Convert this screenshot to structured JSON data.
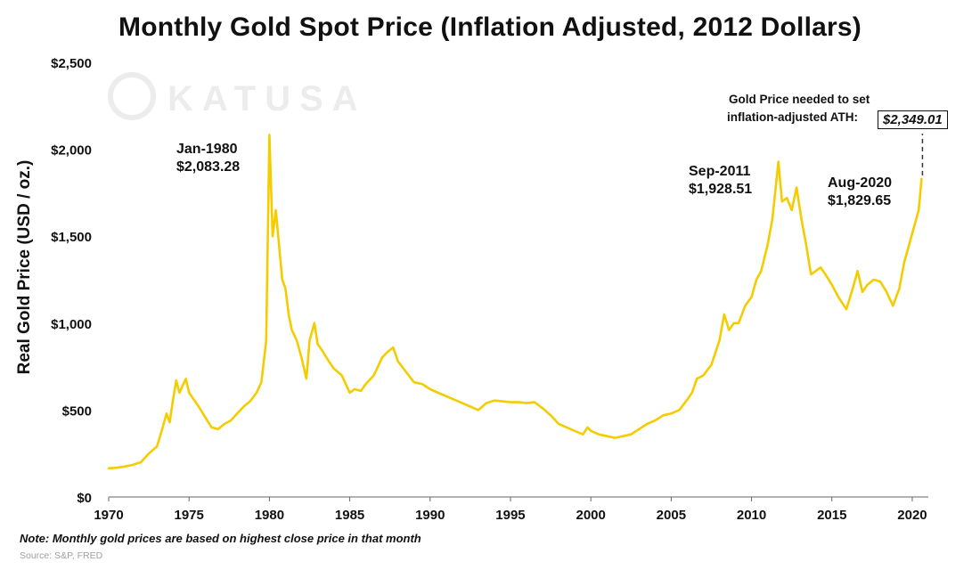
{
  "chart_data": {
    "type": "line",
    "title": "Monthly Gold Spot Price (Inflation Adjusted, 2012 Dollars)",
    "xlabel": "",
    "ylabel": "Real Gold Price (USD / oz.)",
    "xlim": [
      1970,
      2021
    ],
    "ylim": [
      0,
      2500
    ],
    "x_ticks": [
      1970,
      1975,
      1980,
      1985,
      1990,
      1995,
      2000,
      2005,
      2010,
      2015,
      2020
    ],
    "y_ticks": [
      0,
      500,
      1000,
      1500,
      2000,
      2500
    ],
    "y_tick_labels": [
      "$0",
      "$500",
      "$1,000",
      "$1,500",
      "$2,000",
      "$2,500"
    ],
    "grid": false,
    "legend": "none",
    "line_color": "#F5CC00",
    "series": [
      {
        "x": [
          1970.0,
          1970.5,
          1971.0,
          1971.5,
          1972.0,
          1972.5,
          1973.0,
          1973.3,
          1973.6,
          1973.8,
          1974.0,
          1974.2,
          1974.4,
          1974.6,
          1974.8,
          1975.0,
          1975.3,
          1975.6,
          1976.0,
          1976.4,
          1976.8,
          1977.2,
          1977.6,
          1978.0,
          1978.4,
          1978.8,
          1979.2,
          1979.5,
          1979.8,
          1980.0,
          1980.2,
          1980.4,
          1980.6,
          1980.8,
          1981.0,
          1981.2,
          1981.4,
          1981.7,
          1982.0,
          1982.3,
          1982.5,
          1982.8,
          1983.0,
          1983.3,
          1983.7,
          1984.0,
          1984.5,
          1985.0,
          1985.3,
          1985.7,
          1986.0,
          1986.5,
          1987.0,
          1987.3,
          1987.7,
          1988.0,
          1988.5,
          1989.0,
          1989.5,
          1990.0,
          1990.5,
          1991.0,
          1991.5,
          1992.0,
          1992.5,
          1993.0,
          1993.5,
          1994.0,
          1994.5,
          1995.0,
          1995.5,
          1996.0,
          1996.5,
          1997.0,
          1997.5,
          1998.0,
          1998.5,
          1999.0,
          1999.5,
          1999.8,
          2000.0,
          2000.5,
          2001.0,
          2001.5,
          2002.0,
          2002.5,
          2003.0,
          2003.5,
          2004.0,
          2004.5,
          2005.0,
          2005.5,
          2006.0,
          2006.3,
          2006.6,
          2007.0,
          2007.5,
          2008.0,
          2008.3,
          2008.6,
          2008.9,
          2009.2,
          2009.6,
          2010.0,
          2010.3,
          2010.6,
          2011.0,
          2011.3,
          2011.67,
          2011.9,
          2012.2,
          2012.5,
          2012.8,
          2013.1,
          2013.4,
          2013.7,
          2014.0,
          2014.3,
          2014.6,
          2015.0,
          2015.4,
          2015.9,
          2016.3,
          2016.6,
          2016.9,
          2017.2,
          2017.6,
          2018.0,
          2018.4,
          2018.8,
          2019.2,
          2019.5,
          2019.8,
          2020.1,
          2020.4,
          2020.58
        ],
        "y": [
          165,
          168,
          175,
          185,
          200,
          250,
          290,
          380,
          480,
          430,
          560,
          670,
          600,
          640,
          680,
          600,
          560,
          520,
          460,
          400,
          390,
          420,
          440,
          480,
          520,
          550,
          600,
          660,
          900,
          2083,
          1500,
          1650,
          1450,
          1250,
          1200,
          1050,
          960,
          900,
          800,
          680,
          900,
          1000,
          880,
          840,
          780,
          740,
          700,
          600,
          620,
          610,
          650,
          700,
          800,
          830,
          860,
          780,
          720,
          660,
          650,
          620,
          600,
          580,
          560,
          540,
          520,
          500,
          540,
          555,
          550,
          545,
          545,
          540,
          545,
          510,
          470,
          420,
          400,
          380,
          360,
          400,
          380,
          360,
          350,
          340,
          350,
          360,
          390,
          420,
          440,
          470,
          480,
          500,
          560,
          600,
          680,
          700,
          760,
          900,
          1050,
          960,
          1000,
          1000,
          1100,
          1150,
          1250,
          1300,
          1450,
          1600,
          1928.51,
          1700,
          1720,
          1650,
          1780,
          1600,
          1450,
          1280,
          1300,
          1320,
          1280,
          1220,
          1150,
          1080,
          1200,
          1300,
          1180,
          1220,
          1250,
          1240,
          1180,
          1100,
          1200,
          1350,
          1450,
          1550,
          1650,
          1829.65
        ]
      }
    ],
    "annotations": [
      {
        "date": "Jan-1980",
        "value": "$2,083.28"
      },
      {
        "date": "Sep-2011",
        "value": "$1,928.51"
      },
      {
        "date": "Aug-2020",
        "value": "$1,829.65"
      }
    ],
    "ath_note": {
      "text_line1": "Gold Price needed to set",
      "text_line2": "inflation-adjusted ATH:",
      "value": "$2,349.01",
      "target": 2349.01
    },
    "note": "Note: Monthly gold prices are based on highest close price in that month",
    "source": "Source: S&P, FRED",
    "watermark": "KATUSA"
  }
}
